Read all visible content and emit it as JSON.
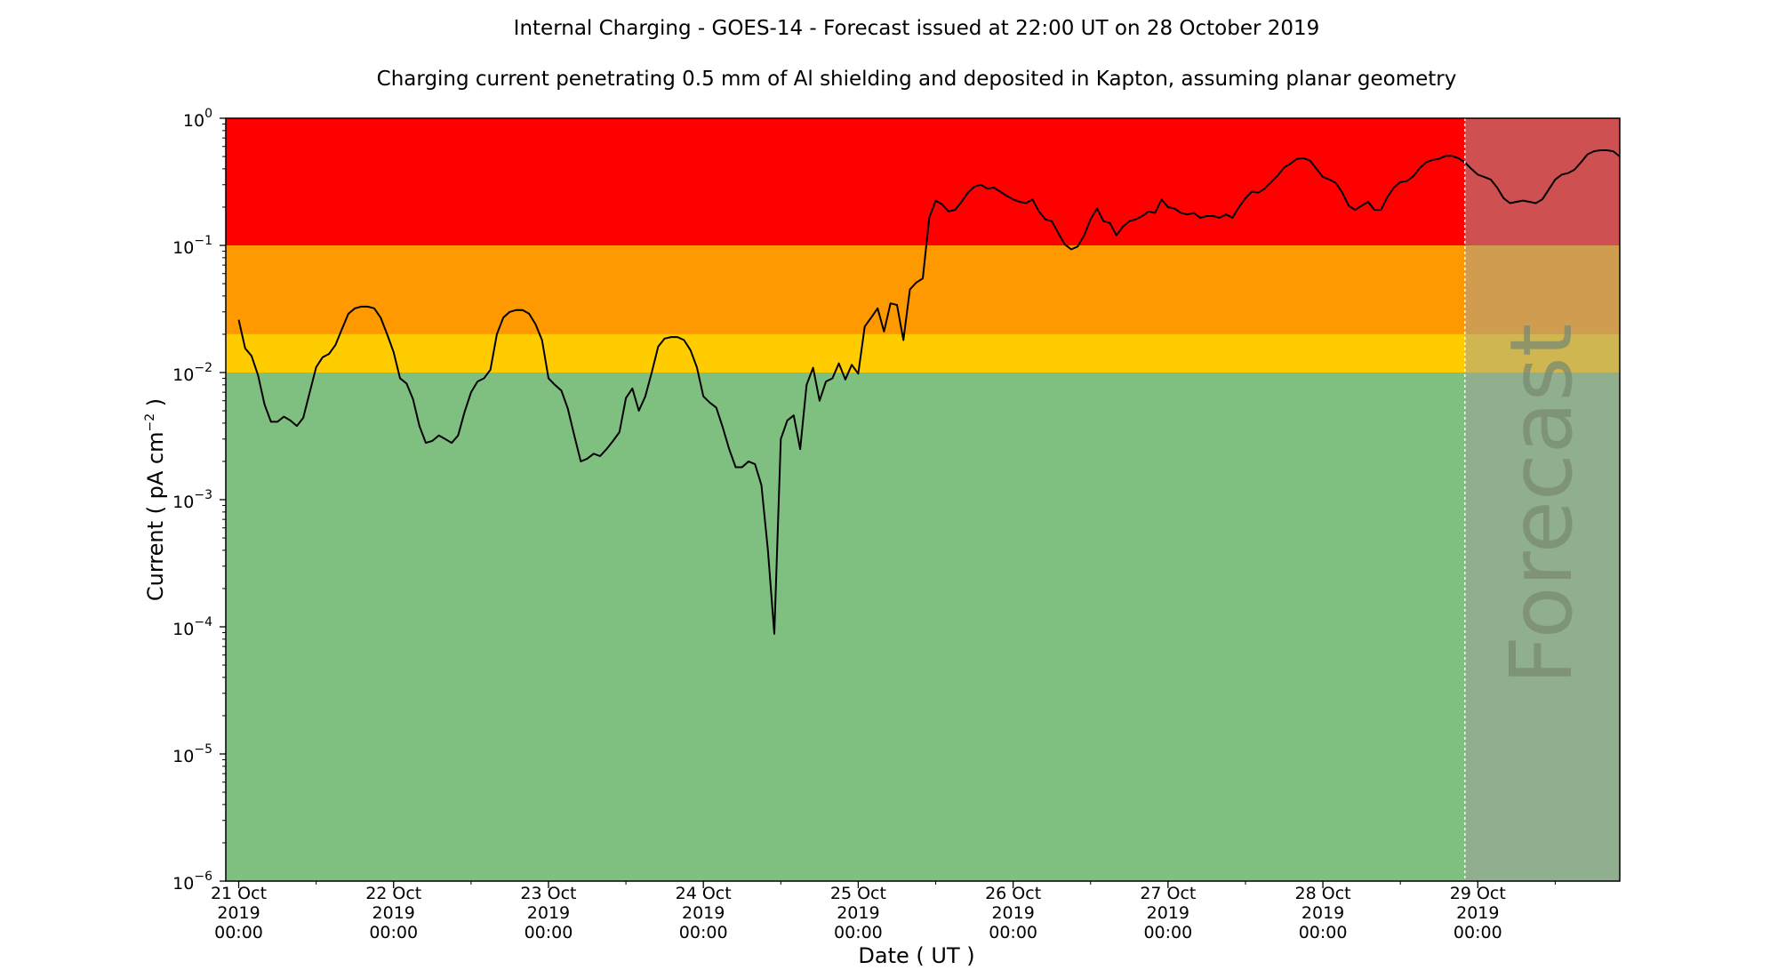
{
  "chart_data": {
    "type": "line",
    "title": "Internal Charging - GOES-14 - Forecast issued at 22:00 UT on 28 October 2019",
    "subtitle": "Charging current penetrating 0.5 mm of Al shielding and deposited in Kapton, assuming planar geometry",
    "xlabel": "Date ( UT )",
    "ylabel": {
      "prefix": "Current ( pA cm",
      "sup": "−2",
      "suffix": " )"
    },
    "y_scale": "log",
    "ylim": [
      1e-06,
      1
    ],
    "y_ticks": [
      {
        "value": 1e-06,
        "base": "10",
        "exp": "−6"
      },
      {
        "value": 1e-05,
        "base": "10",
        "exp": "−5"
      },
      {
        "value": 0.0001,
        "base": "10",
        "exp": "−4"
      },
      {
        "value": 0.001,
        "base": "10",
        "exp": "−3"
      },
      {
        "value": 0.01,
        "base": "10",
        "exp": "−2"
      },
      {
        "value": 0.1,
        "base": "10",
        "exp": "−1"
      },
      {
        "value": 1,
        "base": "10",
        "exp": "0"
      }
    ],
    "xlim": [
      "2019-10-20T22:00",
      "2019-10-29T22:00"
    ],
    "x_ticks": [
      {
        "value": "2019-10-21T00:00",
        "label": [
          "21 Oct",
          "2019",
          "00:00"
        ]
      },
      {
        "value": "2019-10-22T00:00",
        "label": [
          "22 Oct",
          "2019",
          "00:00"
        ]
      },
      {
        "value": "2019-10-23T00:00",
        "label": [
          "23 Oct",
          "2019",
          "00:00"
        ]
      },
      {
        "value": "2019-10-24T00:00",
        "label": [
          "24 Oct",
          "2019",
          "00:00"
        ]
      },
      {
        "value": "2019-10-25T00:00",
        "label": [
          "25 Oct",
          "2019",
          "00:00"
        ]
      },
      {
        "value": "2019-10-26T00:00",
        "label": [
          "26 Oct",
          "2019",
          "00:00"
        ]
      },
      {
        "value": "2019-10-27T00:00",
        "label": [
          "27 Oct",
          "2019",
          "00:00"
        ]
      },
      {
        "value": "2019-10-28T00:00",
        "label": [
          "28 Oct",
          "2019",
          "00:00"
        ]
      },
      {
        "value": "2019-10-29T00:00",
        "label": [
          "29 Oct",
          "2019",
          "00:00"
        ]
      }
    ],
    "x_minor_ticks": [
      "2019-10-21T12:00",
      "2019-10-22T12:00",
      "2019-10-23T12:00",
      "2019-10-24T12:00",
      "2019-10-25T12:00",
      "2019-10-26T12:00",
      "2019-10-27T12:00",
      "2019-10-28T12:00",
      "2019-10-29T12:00"
    ],
    "bands": [
      {
        "from": 1e-06,
        "to": 0.01,
        "color": "#7fbf7f"
      },
      {
        "from": 0.01,
        "to": 0.02,
        "color": "#ffcc00"
      },
      {
        "from": 0.02,
        "to": 0.1,
        "color": "#ff9900"
      },
      {
        "from": 0.1,
        "to": 1,
        "color": "#ff0000"
      }
    ],
    "forecast": {
      "start": "2019-10-28T22:00",
      "label": "Forecast",
      "overlay_color": "#a0a0a0",
      "divider_color": "#ffffff"
    },
    "series": [
      {
        "color": "#000000",
        "points": [
          [
            "2019-10-21T00:00",
            0.026
          ],
          [
            "2019-10-21T01:00",
            0.0155
          ],
          [
            "2019-10-21T02:00",
            0.0135
          ],
          [
            "2019-10-21T03:00",
            0.0095
          ],
          [
            "2019-10-21T04:00",
            0.0056
          ],
          [
            "2019-10-21T05:00",
            0.0041
          ],
          [
            "2019-10-21T06:00",
            0.0041
          ],
          [
            "2019-10-21T07:00",
            0.0045
          ],
          [
            "2019-10-21T08:00",
            0.0042
          ],
          [
            "2019-10-21T09:00",
            0.0038
          ],
          [
            "2019-10-21T10:00",
            0.0044
          ],
          [
            "2019-10-21T11:00",
            0.007
          ],
          [
            "2019-10-21T12:00",
            0.011
          ],
          [
            "2019-10-21T13:00",
            0.0132
          ],
          [
            "2019-10-21T14:00",
            0.014
          ],
          [
            "2019-10-21T15:00",
            0.0165
          ],
          [
            "2019-10-21T16:00",
            0.022
          ],
          [
            "2019-10-21T17:00",
            0.029
          ],
          [
            "2019-10-21T18:00",
            0.032
          ],
          [
            "2019-10-21T19:00",
            0.033
          ],
          [
            "2019-10-21T20:00",
            0.033
          ],
          [
            "2019-10-21T21:00",
            0.032
          ],
          [
            "2019-10-21T22:00",
            0.027
          ],
          [
            "2019-10-21T23:00",
            0.02
          ],
          [
            "2019-10-22T00:00",
            0.0145
          ],
          [
            "2019-10-22T01:00",
            0.009
          ],
          [
            "2019-10-22T02:00",
            0.0082
          ],
          [
            "2019-10-22T03:00",
            0.0062
          ],
          [
            "2019-10-22T04:00",
            0.0038
          ],
          [
            "2019-10-22T05:00",
            0.0028
          ],
          [
            "2019-10-22T06:00",
            0.0029
          ],
          [
            "2019-10-22T07:00",
            0.0032
          ],
          [
            "2019-10-22T08:00",
            0.003
          ],
          [
            "2019-10-22T09:00",
            0.0028
          ],
          [
            "2019-10-22T10:00",
            0.0032
          ],
          [
            "2019-10-22T11:00",
            0.0049
          ],
          [
            "2019-10-22T12:00",
            0.007
          ],
          [
            "2019-10-22T13:00",
            0.0085
          ],
          [
            "2019-10-22T14:00",
            0.009
          ],
          [
            "2019-10-22T15:00",
            0.0105
          ],
          [
            "2019-10-22T16:00",
            0.02
          ],
          [
            "2019-10-22T17:00",
            0.027
          ],
          [
            "2019-10-22T18:00",
            0.03
          ],
          [
            "2019-10-22T19:00",
            0.031
          ],
          [
            "2019-10-22T20:00",
            0.031
          ],
          [
            "2019-10-22T21:00",
            0.029
          ],
          [
            "2019-10-22T22:00",
            0.024
          ],
          [
            "2019-10-22T23:00",
            0.018
          ],
          [
            "2019-10-23T00:00",
            0.009
          ],
          [
            "2019-10-23T01:00",
            0.008
          ],
          [
            "2019-10-23T02:00",
            0.0072
          ],
          [
            "2019-10-23T03:00",
            0.0052
          ],
          [
            "2019-10-23T04:00",
            0.0032
          ],
          [
            "2019-10-23T05:00",
            0.002
          ],
          [
            "2019-10-23T06:00",
            0.0021
          ],
          [
            "2019-10-23T07:00",
            0.0023
          ],
          [
            "2019-10-23T08:00",
            0.0022
          ],
          [
            "2019-10-23T09:00",
            0.0025
          ],
          [
            "2019-10-23T10:00",
            0.0029
          ],
          [
            "2019-10-23T11:00",
            0.0034
          ],
          [
            "2019-10-23T12:00",
            0.0063
          ],
          [
            "2019-10-23T13:00",
            0.0075
          ],
          [
            "2019-10-23T14:00",
            0.005
          ],
          [
            "2019-10-23T15:00",
            0.0065
          ],
          [
            "2019-10-23T16:00",
            0.01
          ],
          [
            "2019-10-23T17:00",
            0.016
          ],
          [
            "2019-10-23T18:00",
            0.0185
          ],
          [
            "2019-10-23T19:00",
            0.019
          ],
          [
            "2019-10-23T20:00",
            0.019
          ],
          [
            "2019-10-23T21:00",
            0.018
          ],
          [
            "2019-10-23T22:00",
            0.015
          ],
          [
            "2019-10-23T23:00",
            0.011
          ],
          [
            "2019-10-24T00:00",
            0.0065
          ],
          [
            "2019-10-24T01:00",
            0.0058
          ],
          [
            "2019-10-24T02:00",
            0.0053
          ],
          [
            "2019-10-24T03:00",
            0.0037
          ],
          [
            "2019-10-24T04:00",
            0.0025
          ],
          [
            "2019-10-24T05:00",
            0.0018
          ],
          [
            "2019-10-24T06:00",
            0.0018
          ],
          [
            "2019-10-24T07:00",
            0.002
          ],
          [
            "2019-10-24T08:00",
            0.0019
          ],
          [
            "2019-10-24T09:00",
            0.0013
          ],
          [
            "2019-10-24T10:00",
            0.0004
          ],
          [
            "2019-10-24T11:00",
            8.8e-05
          ],
          [
            "2019-10-24T12:00",
            0.003
          ],
          [
            "2019-10-24T13:00",
            0.0042
          ],
          [
            "2019-10-24T14:00",
            0.0046
          ],
          [
            "2019-10-24T15:00",
            0.0025
          ],
          [
            "2019-10-24T16:00",
            0.008
          ],
          [
            "2019-10-24T17:00",
            0.0109
          ],
          [
            "2019-10-24T18:00",
            0.006
          ],
          [
            "2019-10-24T19:00",
            0.0085
          ],
          [
            "2019-10-24T20:00",
            0.009
          ],
          [
            "2019-10-24T21:00",
            0.0118
          ],
          [
            "2019-10-24T22:00",
            0.0088
          ],
          [
            "2019-10-24T23:00",
            0.0115
          ],
          [
            "2019-10-25T00:00",
            0.0098
          ],
          [
            "2019-10-25T01:00",
            0.023
          ],
          [
            "2019-10-25T02:00",
            0.027
          ],
          [
            "2019-10-25T03:00",
            0.032
          ],
          [
            "2019-10-25T04:00",
            0.021
          ],
          [
            "2019-10-25T05:00",
            0.035
          ],
          [
            "2019-10-25T06:00",
            0.034
          ],
          [
            "2019-10-25T07:00",
            0.018
          ],
          [
            "2019-10-25T08:00",
            0.045
          ],
          [
            "2019-10-25T09:00",
            0.051
          ],
          [
            "2019-10-25T10:00",
            0.055
          ],
          [
            "2019-10-25T11:00",
            0.165
          ],
          [
            "2019-10-25T12:00",
            0.225
          ],
          [
            "2019-10-25T13:00",
            0.21
          ],
          [
            "2019-10-25T14:00",
            0.185
          ],
          [
            "2019-10-25T15:00",
            0.19
          ],
          [
            "2019-10-25T16:00",
            0.22
          ],
          [
            "2019-10-25T17:00",
            0.26
          ],
          [
            "2019-10-25T18:00",
            0.29
          ],
          [
            "2019-10-25T19:00",
            0.3
          ],
          [
            "2019-10-25T20:00",
            0.28
          ],
          [
            "2019-10-25T21:00",
            0.285
          ],
          [
            "2019-10-25T22:00",
            0.265
          ],
          [
            "2019-10-25T23:00",
            0.245
          ],
          [
            "2019-10-26T00:00",
            0.23
          ],
          [
            "2019-10-26T01:00",
            0.22
          ],
          [
            "2019-10-26T02:00",
            0.215
          ],
          [
            "2019-10-26T03:00",
            0.23
          ],
          [
            "2019-10-26T04:00",
            0.185
          ],
          [
            "2019-10-26T05:00",
            0.16
          ],
          [
            "2019-10-26T06:00",
            0.155
          ],
          [
            "2019-10-26T07:00",
            0.125
          ],
          [
            "2019-10-26T08:00",
            0.102
          ],
          [
            "2019-10-26T09:00",
            0.093
          ],
          [
            "2019-10-26T10:00",
            0.098
          ],
          [
            "2019-10-26T11:00",
            0.12
          ],
          [
            "2019-10-26T12:00",
            0.16
          ],
          [
            "2019-10-26T13:00",
            0.195
          ],
          [
            "2019-10-26T14:00",
            0.155
          ],
          [
            "2019-10-26T15:00",
            0.15
          ],
          [
            "2019-10-26T16:00",
            0.12
          ],
          [
            "2019-10-26T17:00",
            0.14
          ],
          [
            "2019-10-26T18:00",
            0.155
          ],
          [
            "2019-10-26T19:00",
            0.16
          ],
          [
            "2019-10-26T20:00",
            0.17
          ],
          [
            "2019-10-26T21:00",
            0.185
          ],
          [
            "2019-10-26T22:00",
            0.18
          ],
          [
            "2019-10-26T23:00",
            0.23
          ],
          [
            "2019-10-27T00:00",
            0.2
          ],
          [
            "2019-10-27T01:00",
            0.195
          ],
          [
            "2019-10-27T02:00",
            0.18
          ],
          [
            "2019-10-27T03:00",
            0.175
          ],
          [
            "2019-10-27T04:00",
            0.18
          ],
          [
            "2019-10-27T05:00",
            0.165
          ],
          [
            "2019-10-27T06:00",
            0.17
          ],
          [
            "2019-10-27T07:00",
            0.17
          ],
          [
            "2019-10-27T08:00",
            0.165
          ],
          [
            "2019-10-27T09:00",
            0.175
          ],
          [
            "2019-10-27T10:00",
            0.165
          ],
          [
            "2019-10-27T11:00",
            0.2
          ],
          [
            "2019-10-27T12:00",
            0.235
          ],
          [
            "2019-10-27T13:00",
            0.265
          ],
          [
            "2019-10-27T14:00",
            0.26
          ],
          [
            "2019-10-27T15:00",
            0.28
          ],
          [
            "2019-10-27T16:00",
            0.315
          ],
          [
            "2019-10-27T17:00",
            0.355
          ],
          [
            "2019-10-27T18:00",
            0.41
          ],
          [
            "2019-10-27T19:00",
            0.44
          ],
          [
            "2019-10-27T20:00",
            0.48
          ],
          [
            "2019-10-27T21:00",
            0.485
          ],
          [
            "2019-10-27T22:00",
            0.465
          ],
          [
            "2019-10-27T23:00",
            0.4
          ],
          [
            "2019-10-28T00:00",
            0.345
          ],
          [
            "2019-10-28T01:00",
            0.33
          ],
          [
            "2019-10-28T02:00",
            0.31
          ],
          [
            "2019-10-28T03:00",
            0.26
          ],
          [
            "2019-10-28T04:00",
            0.205
          ],
          [
            "2019-10-28T05:00",
            0.19
          ],
          [
            "2019-10-28T06:00",
            0.205
          ],
          [
            "2019-10-28T07:00",
            0.22
          ],
          [
            "2019-10-28T08:00",
            0.19
          ],
          [
            "2019-10-28T09:00",
            0.19
          ],
          [
            "2019-10-28T10:00",
            0.24
          ],
          [
            "2019-10-28T11:00",
            0.285
          ],
          [
            "2019-10-28T12:00",
            0.315
          ],
          [
            "2019-10-28T13:00",
            0.32
          ],
          [
            "2019-10-28T14:00",
            0.35
          ],
          [
            "2019-10-28T15:00",
            0.405
          ],
          [
            "2019-10-28T16:00",
            0.45
          ],
          [
            "2019-10-28T17:00",
            0.47
          ],
          [
            "2019-10-28T18:00",
            0.48
          ],
          [
            "2019-10-28T19:00",
            0.505
          ],
          [
            "2019-10-28T20:00",
            0.505
          ],
          [
            "2019-10-28T21:00",
            0.485
          ],
          [
            "2019-10-28T22:00",
            0.45
          ],
          [
            "2019-10-28T23:00",
            0.4
          ],
          [
            "2019-10-29T00:00",
            0.36
          ],
          [
            "2019-10-29T01:00",
            0.345
          ],
          [
            "2019-10-29T02:00",
            0.33
          ],
          [
            "2019-10-29T03:00",
            0.285
          ],
          [
            "2019-10-29T04:00",
            0.235
          ],
          [
            "2019-10-29T05:00",
            0.215
          ],
          [
            "2019-10-29T06:00",
            0.22
          ],
          [
            "2019-10-29T07:00",
            0.225
          ],
          [
            "2019-10-29T08:00",
            0.22
          ],
          [
            "2019-10-29T09:00",
            0.215
          ],
          [
            "2019-10-29T10:00",
            0.23
          ],
          [
            "2019-10-29T11:00",
            0.275
          ],
          [
            "2019-10-29T12:00",
            0.33
          ],
          [
            "2019-10-29T13:00",
            0.36
          ],
          [
            "2019-10-29T14:00",
            0.37
          ],
          [
            "2019-10-29T15:00",
            0.395
          ],
          [
            "2019-10-29T16:00",
            0.45
          ],
          [
            "2019-10-29T17:00",
            0.52
          ],
          [
            "2019-10-29T18:00",
            0.55
          ],
          [
            "2019-10-29T19:00",
            0.56
          ],
          [
            "2019-10-29T20:00",
            0.56
          ],
          [
            "2019-10-29T21:00",
            0.55
          ],
          [
            "2019-10-29T22:00",
            0.5
          ]
        ]
      }
    ]
  }
}
